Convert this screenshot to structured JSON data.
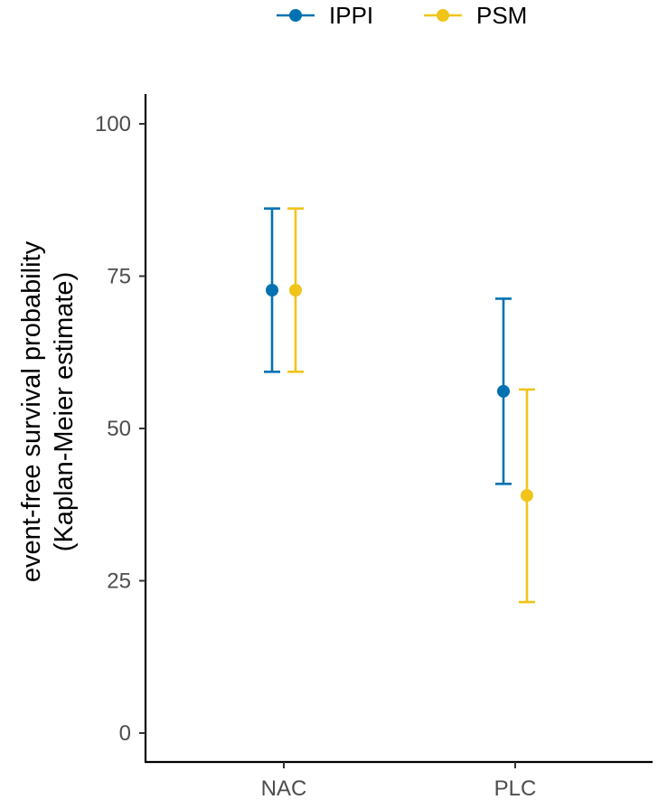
{
  "chart_data": {
    "type": "scatter",
    "title": "",
    "xlabel": "",
    "ylabel": [
      "event-free survival probability",
      "(Kaplan-Meier estimate)"
    ],
    "categories": [
      "NAC",
      "PLC"
    ],
    "ylim": [
      0,
      100
    ],
    "yticks": [
      0,
      25,
      50,
      75,
      100
    ],
    "grid": false,
    "legend_position": "top",
    "series": [
      {
        "name": "IPPI",
        "color": "#0072B2",
        "values": [
          72.7,
          56.1
        ],
        "lower": [
          59.3,
          40.9
        ],
        "upper": [
          86.1,
          71.3
        ]
      },
      {
        "name": "PSM",
        "color": "#F0C419",
        "values": [
          72.7,
          39.0
        ],
        "lower": [
          59.3,
          21.5
        ],
        "upper": [
          86.1,
          56.4
        ]
      }
    ]
  }
}
